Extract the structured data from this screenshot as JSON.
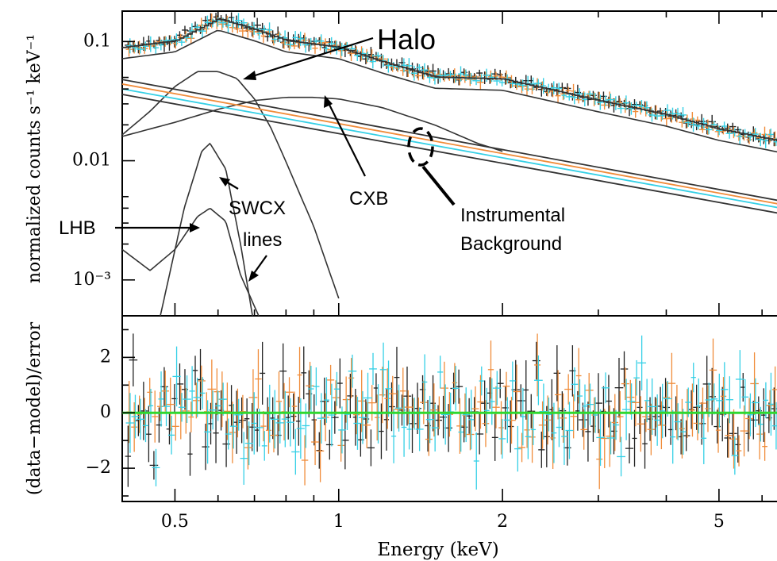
{
  "chart_data": [
    {
      "type": "scatter",
      "panel": "spectrum",
      "ylabel": "normalized counts s⁻¹ keV⁻¹",
      "y_scale": "log",
      "x_scale": "log",
      "xlim": [
        0.4,
        6.5
      ],
      "ylim": [
        0.0005,
        0.18
      ],
      "y_ticks": [
        {
          "value": 0.1,
          "label": "0.1"
        },
        {
          "value": 0.01,
          "label": "0.01"
        },
        {
          "value": 0.001,
          "label": "10⁻³"
        }
      ],
      "annotations": [
        "Halo",
        "CXB",
        "Instrumental",
        "Background",
        "SWCX",
        "lines",
        "LHB"
      ],
      "colors": {
        "obs1": "#222222",
        "obs2": "#f08c3a",
        "obs3": "#35d0e6",
        "model": "#333333"
      },
      "components": [
        {
          "label": "Halo",
          "x": [
            0.4,
            0.45,
            0.5,
            0.55,
            0.6,
            0.65,
            0.7,
            0.75,
            0.8,
            0.9,
            1.0
          ],
          "y": [
            0.0165,
            0.026,
            0.042,
            0.056,
            0.056,
            0.049,
            0.033,
            0.019,
            0.0098,
            0.0028,
            0.0007
          ]
        },
        {
          "label": "CXB",
          "x": [
            0.4,
            0.5,
            0.6,
            0.7,
            0.8,
            0.9,
            1.0,
            1.2,
            1.5,
            1.8,
            2.0
          ],
          "y": [
            0.016,
            0.021,
            0.027,
            0.032,
            0.034,
            0.034,
            0.033,
            0.028,
            0.02,
            0.014,
            0.012
          ]
        },
        {
          "label": "SWCX lines",
          "x": [
            0.47,
            0.52,
            0.56,
            0.58,
            0.62,
            0.66,
            0.7
          ],
          "y": [
            0.0005,
            0.004,
            0.012,
            0.014,
            0.0085,
            0.002,
            0.0004
          ]
        },
        {
          "label": "LHB",
          "x": [
            0.4,
            0.45,
            0.5,
            0.55,
            0.58,
            0.62,
            0.66,
            0.72
          ],
          "y": [
            0.0018,
            0.0012,
            0.0018,
            0.0034,
            0.004,
            0.0031,
            0.0011,
            0.00045
          ]
        }
      ],
      "series": [
        {
          "x": [
            0.4,
            0.5,
            0.6,
            0.7,
            0.8,
            1.0,
            1.2,
            1.5,
            2.0,
            3.0,
            4.0,
            5.0,
            6.5
          ],
          "y": [
            0.092,
            0.105,
            0.16,
            0.13,
            0.105,
            0.092,
            0.07,
            0.052,
            0.05,
            0.033,
            0.025,
            0.019,
            0.015
          ]
        },
        {
          "x": [
            0.4,
            0.5,
            0.6,
            0.7,
            0.8,
            1.0,
            1.2,
            1.5,
            2.0,
            3.0,
            4.0,
            5.0,
            6.5
          ],
          "y": [
            0.085,
            0.1,
            0.15,
            0.125,
            0.1,
            0.088,
            0.068,
            0.05,
            0.048,
            0.032,
            0.024,
            0.018,
            0.0145
          ]
        },
        {
          "x": [
            0.4,
            0.5,
            0.6,
            0.7,
            0.8,
            1.0,
            1.2,
            1.5,
            2.0,
            3.0,
            4.0,
            5.0,
            6.5
          ],
          "y": [
            0.088,
            0.102,
            0.155,
            0.128,
            0.102,
            0.09,
            0.069,
            0.051,
            0.049,
            0.0325,
            0.0245,
            0.0185,
            0.0148
          ]
        }
      ]
    },
    {
      "type": "scatter",
      "panel": "residuals",
      "xlabel": "Energy (keV)",
      "ylabel": "(data−model)/error",
      "x_scale": "log",
      "xlim": [
        0.4,
        6.5
      ],
      "ylim": [
        -3.2,
        3.5
      ],
      "x_ticks": [
        {
          "value": 0.5,
          "label": "0.5"
        },
        {
          "value": 1,
          "label": "1"
        },
        {
          "value": 2,
          "label": "2"
        },
        {
          "value": 5,
          "label": "5"
        }
      ],
      "y_ticks": [
        {
          "value": 2,
          "label": "2"
        },
        {
          "value": 0,
          "label": "0"
        },
        {
          "value": -2,
          "label": "−2"
        }
      ],
      "zero_line_color": "#2fd82f"
    }
  ]
}
